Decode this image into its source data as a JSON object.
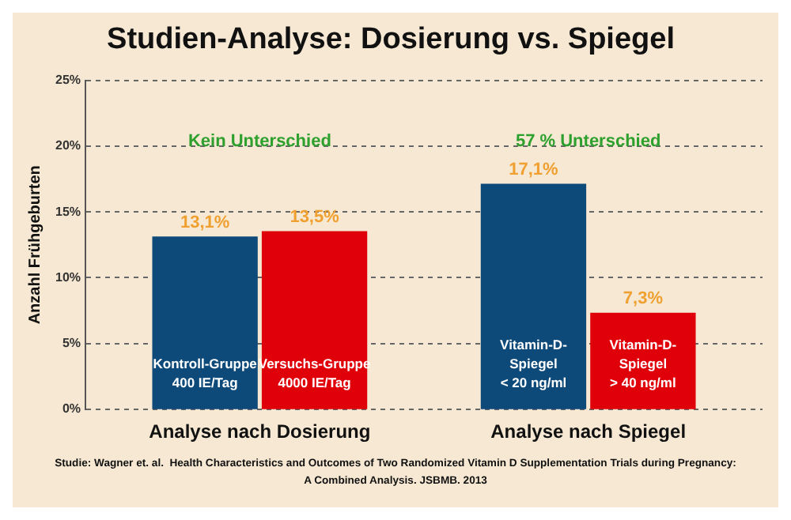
{
  "chart_data": {
    "type": "bar",
    "title": "Studien-Analyse: Dosierung vs. Spiegel",
    "ylabel": "Anzahl Frühgeburten",
    "categories": [
      "Kontroll-Gruppe\n400 IE/Tag",
      "Versuchs-Gruppe\n4000 IE/Tag",
      "Vitamin-D-\nSpiegel\n< 20 ng/ml",
      "Vitamin-D-\nSpiegel\n> 40 ng/ml"
    ],
    "values": [
      13.1,
      13.5,
      17.1,
      7.3
    ],
    "colors": [
      "#0d4a7a",
      "#e0000a",
      "#0d4a7a",
      "#e0000a"
    ],
    "value_labels": [
      "13,1%",
      "13,5%",
      "17,1%",
      "7,3%"
    ],
    "ylim": [
      0,
      25
    ],
    "yticks": [
      {
        "value": 0,
        "label": "0%"
      },
      {
        "value": 5,
        "label": "5%"
      },
      {
        "value": 10,
        "label": "10%"
      },
      {
        "value": 15,
        "label": "15%"
      },
      {
        "value": 20,
        "label": "20%"
      },
      {
        "value": 25,
        "label": "25%"
      }
    ],
    "grid": "y",
    "line_style": "dashed",
    "annotations": [
      "Kein Unterschied",
      "57 % Unterschied",
      "Analyse nach Dosierung",
      "Analyse nach Spiegel",
      "Studie: Wagner et. al.  Health Characteristics and Outcomes of Two Randomized Vitamin D Supplementation Trials during Pregnancy:",
      "A Combined Analysis. JSBMB. 2013"
    ]
  }
}
